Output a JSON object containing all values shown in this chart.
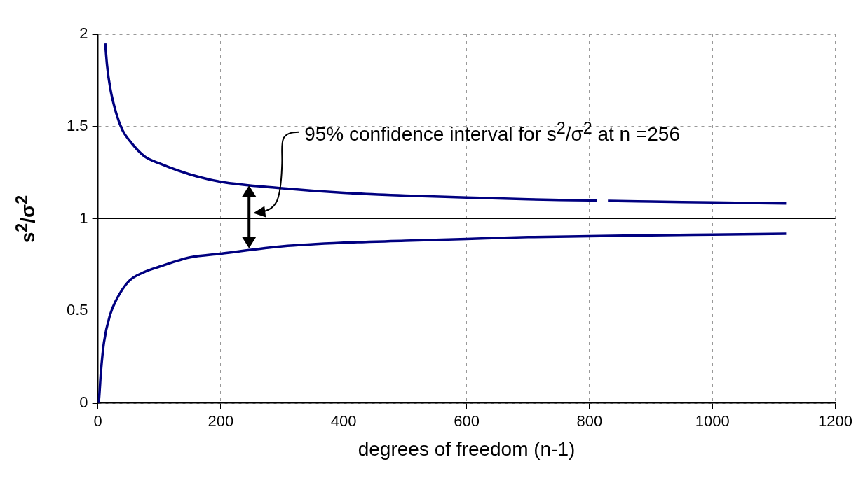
{
  "chart_data": {
    "type": "line",
    "xlabel": "degrees of freedom (n-1)",
    "ylabel": "s$^{2}$/σ$^{2}$",
    "xlim": [
      0,
      1200
    ],
    "xticks": [
      0,
      200,
      400,
      600,
      800,
      1000,
      1200
    ],
    "ylim": [
      0,
      2
    ],
    "yticks": [
      0,
      0.5,
      1,
      1.5,
      2
    ],
    "grid": true,
    "legend": false,
    "marker": "none",
    "line_style": "solid",
    "ref_lines": [
      {
        "axis": "y",
        "value": 1,
        "color": "#000000",
        "line_style": "solid"
      }
    ],
    "annotations": [
      "95% confidence interval for s$^{2}$/σ$^{2}$ at n =256"
    ],
    "series": [
      {
        "color": "#000080",
        "x": [
          12,
          15,
          20,
          30,
          40,
          50,
          75,
          100,
          150,
          200,
          300,
          400,
          500,
          600,
          700,
          800,
          812,
          822,
          830,
          900,
          1000,
          1120
        ],
        "values": [
          1.95,
          1.83,
          1.71,
          1.57,
          1.48,
          1.43,
          1.34,
          1.3,
          1.24,
          1.2,
          1.165,
          1.14,
          1.125,
          1.115,
          1.105,
          1.1,
          1.1,
          null,
          1.097,
          1.093,
          1.088,
          1.083
        ]
      },
      {
        "color": "#000080",
        "x": [
          1,
          2,
          5,
          10,
          20,
          30,
          50,
          75,
          100,
          150,
          200,
          300,
          400,
          500,
          600,
          700,
          800,
          900,
          1000,
          1120
        ],
        "values": [
          0.001,
          0.025,
          0.17,
          0.33,
          0.48,
          0.56,
          0.66,
          0.71,
          0.74,
          0.79,
          0.81,
          0.85,
          0.87,
          0.88,
          0.89,
          0.9,
          0.905,
          0.91,
          0.914,
          0.918
        ]
      }
    ]
  }
}
